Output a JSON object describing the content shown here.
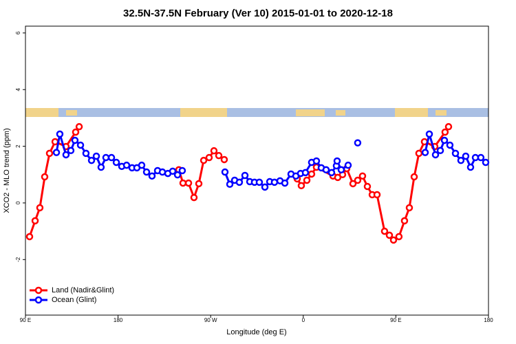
{
  "chart_data": {
    "type": "line",
    "title": "32.5N-37.5N February (Ver 10)   2015-01-01 to 2020-12-18",
    "x_label": "Longitude (deg E)",
    "y_label": "XCO2 - MLO trend (ppm)",
    "xlim": [
      90,
      540
    ],
    "ylim": [
      -3.96,
      6.24
    ],
    "xticks": [
      {
        "value": 90,
        "label": "90 E"
      },
      180,
      {
        "value": 270,
        "label": "90 W"
      },
      {
        "value": 360,
        "label": "0"
      },
      {
        "value": 450,
        "label": "90 E"
      },
      {
        "value": 540,
        "label": "180"
      }
    ],
    "yticks": [
      -2,
      0,
      2,
      4,
      6
    ],
    "legend": "bottom-left",
    "series": [
      {
        "name": "Land (Nadir&Glint)",
        "color": "#ff0000",
        "x": [
          94.0,
          99.4,
          104.0,
          108.7,
          113.4,
          118.8,
          129.4,
          138.8,
          142.2,
          null,
          239.1,
          243.1,
          248.5,
          253.8,
          258.5,
          263.2,
          268.5,
          273.2,
          277.9,
          283.2,
          null,
          354.1,
          358.1,
          363.5,
          368.1,
          372.8,
          388.9,
          393.5,
          398.2,
          402.2,
          408.3,
          412.9,
          417.6,
          422.3,
          427.0,
          431.7,
          439.0,
          443.7,
          447.7,
          453.0,
          458.4,
          463.1,
          467.8,
          472.4,
          477.8,
          487.8,
          497.8,
          501.2
        ],
        "values": [
          -1.19,
          -0.63,
          -0.17,
          0.92,
          1.75,
          2.16,
          1.99,
          2.5,
          2.69,
          null,
          1.17,
          0.7,
          0.7,
          0.19,
          0.68,
          1.5,
          1.6,
          1.84,
          1.67,
          1.53,
          null,
          0.85,
          0.61,
          0.8,
          1.02,
          1.26,
          0.95,
          0.9,
          1.0,
          1.21,
          0.68,
          0.8,
          0.95,
          0.58,
          0.29,
          0.29,
          -1.0,
          -1.14,
          -1.31,
          -1.19,
          -0.63,
          -0.17,
          0.92,
          1.75,
          2.16,
          1.99,
          2.5,
          2.69
        ]
      },
      {
        "name": "Ocean (Glint)",
        "color": "#0000ff",
        "x": [
          120.1,
          123.4,
          129.4,
          134.1,
          138.1,
          143.5,
          148.8,
          154.2,
          158.9,
          163.5,
          168.2,
          173.6,
          178.3,
          183.6,
          188.3,
          193.6,
          198.3,
          203.0,
          207.7,
          213.0,
          218.4,
          223.1,
          228.4,
          233.1,
          237.8,
          242.4,
          null,
          283.9,
          288.6,
          293.3,
          297.9,
          303.3,
          308.0,
          312.6,
          317.3,
          322.7,
          327.4,
          332.0,
          337.4,
          342.1,
          348.1,
          352.8,
          357.4,
          362.1,
          368.1,
          372.8,
          377.5,
          382.2,
          387.5,
          392.2,
          392.9,
          396.9,
          403.6,
          null,
          412.9,
          null,
          478.5,
          482.5,
          488.5,
          493.2,
          497.2,
          502.5,
          507.9,
          513.2,
          517.9,
          522.6,
          527.3,
          532.6,
          537.3
        ],
        "values": [
          1.78,
          2.43,
          1.7,
          1.85,
          2.21,
          2.04,
          1.75,
          1.5,
          1.65,
          1.26,
          1.6,
          1.6,
          1.43,
          1.29,
          1.33,
          1.24,
          1.24,
          1.33,
          1.09,
          0.95,
          1.14,
          1.09,
          1.04,
          1.12,
          0.99,
          1.14,
          null,
          1.09,
          0.66,
          0.8,
          0.73,
          0.97,
          0.75,
          0.73,
          0.73,
          0.56,
          0.75,
          0.73,
          0.78,
          0.7,
          1.02,
          0.95,
          1.04,
          1.07,
          1.43,
          1.48,
          1.24,
          1.17,
          1.07,
          1.31,
          1.48,
          1.17,
          1.33,
          null,
          2.12,
          null,
          1.78,
          2.43,
          1.7,
          1.85,
          2.21,
          2.04,
          1.75,
          1.5,
          1.65,
          1.26,
          1.6,
          1.6,
          1.43
        ]
      }
    ]
  }
}
